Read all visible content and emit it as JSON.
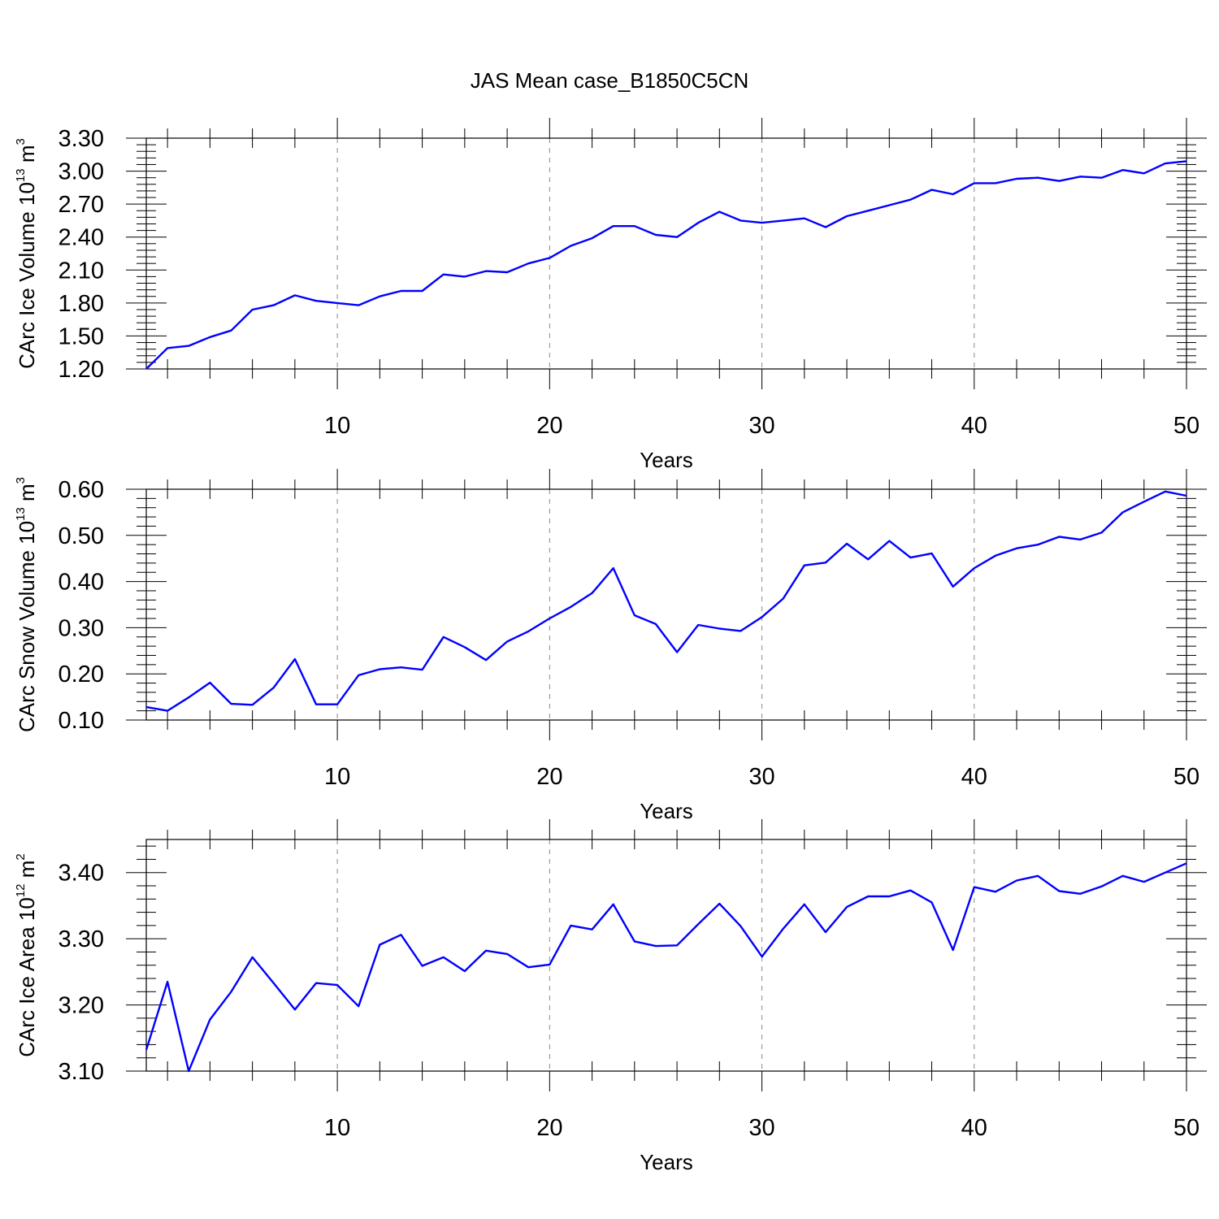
{
  "figure": {
    "title": "JAS Mean case_B1850C5CN",
    "line_color": "#0000ff"
  },
  "chart_data": [
    {
      "type": "line",
      "ylabel_parts": [
        "CArc Ice Volume 10",
        "13",
        " m",
        "3"
      ],
      "xlabel": "Years",
      "xlim": [
        1,
        50
      ],
      "ylim": [
        1.2,
        3.3
      ],
      "xticks": [
        "10",
        "20",
        "30",
        "40",
        "50"
      ],
      "yticks": [
        "1.20",
        "1.50",
        "1.80",
        "2.10",
        "2.40",
        "2.70",
        "3.00",
        "3.30"
      ],
      "grid": "vertical-dashed",
      "series": [
        {
          "x": [
            1,
            2,
            3,
            4,
            5,
            6,
            7,
            8,
            9,
            10,
            11,
            12,
            13,
            14,
            15,
            16,
            17,
            18,
            19,
            20,
            21,
            22,
            23,
            24,
            25,
            26,
            27,
            28,
            29,
            30,
            31,
            32,
            33,
            34,
            35,
            36,
            37,
            38,
            39,
            40,
            41,
            42,
            43,
            44,
            45,
            46,
            47,
            48,
            49,
            50
          ],
          "values": [
            1.2,
            1.39,
            1.41,
            1.49,
            1.55,
            1.74,
            1.78,
            1.87,
            1.82,
            1.8,
            1.78,
            1.86,
            1.91,
            1.91,
            2.06,
            2.04,
            2.09,
            2.08,
            2.16,
            2.21,
            2.32,
            2.39,
            2.5,
            2.5,
            2.42,
            2.4,
            2.53,
            2.63,
            2.55,
            2.53,
            2.55,
            2.57,
            2.49,
            2.59,
            2.64,
            2.69,
            2.74,
            2.83,
            2.79,
            2.89,
            2.89,
            2.93,
            2.94,
            2.91,
            2.95,
            2.94,
            3.01,
            2.98,
            3.07,
            3.09
          ]
        }
      ]
    },
    {
      "type": "line",
      "ylabel_parts": [
        "CArc Snow Volume 10",
        "13",
        " m",
        "3"
      ],
      "xlabel": "Years",
      "xlim": [
        1,
        50
      ],
      "ylim": [
        0.1,
        0.6
      ],
      "xticks": [
        "10",
        "20",
        "30",
        "40",
        "50"
      ],
      "yticks": [
        "0.10",
        "0.20",
        "0.30",
        "0.40",
        "0.50",
        "0.60"
      ],
      "grid": "vertical-dashed",
      "series": [
        {
          "x": [
            1,
            2,
            3,
            4,
            5,
            6,
            7,
            8,
            9,
            10,
            11,
            12,
            13,
            14,
            15,
            16,
            17,
            18,
            19,
            20,
            21,
            22,
            23,
            24,
            25,
            26,
            27,
            28,
            29,
            30,
            31,
            32,
            33,
            34,
            35,
            36,
            37,
            38,
            39,
            40,
            41,
            42,
            43,
            44,
            45,
            46,
            47,
            48,
            49,
            50
          ],
          "values": [
            0.128,
            0.12,
            0.149,
            0.181,
            0.135,
            0.133,
            0.17,
            0.232,
            0.134,
            0.134,
            0.197,
            0.21,
            0.214,
            0.209,
            0.28,
            0.258,
            0.23,
            0.27,
            0.292,
            0.32,
            0.345,
            0.375,
            0.429,
            0.327,
            0.308,
            0.247,
            0.306,
            0.298,
            0.293,
            0.323,
            0.363,
            0.435,
            0.441,
            0.482,
            0.448,
            0.488,
            0.452,
            0.461,
            0.389,
            0.429,
            0.456,
            0.472,
            0.48,
            0.497,
            0.491,
            0.506,
            0.55,
            0.573,
            0.595,
            0.586
          ]
        }
      ]
    },
    {
      "type": "line",
      "ylabel_parts": [
        "CArc Ice Area 10",
        "12",
        " m",
        "2"
      ],
      "xlabel": "Years",
      "xlim": [
        1,
        50
      ],
      "ylim": [
        3.1,
        3.45
      ],
      "xticks": [
        "10",
        "20",
        "30",
        "40",
        "50"
      ],
      "yticks": [
        "3.10",
        "3.20",
        "3.30",
        "3.40"
      ],
      "grid": "vertical-dashed",
      "series": [
        {
          "x": [
            1,
            2,
            3,
            4,
            5,
            6,
            7,
            8,
            9,
            10,
            11,
            12,
            13,
            14,
            15,
            16,
            17,
            18,
            19,
            20,
            21,
            22,
            23,
            24,
            25,
            26,
            27,
            28,
            29,
            30,
            31,
            32,
            33,
            34,
            35,
            36,
            37,
            38,
            39,
            40,
            41,
            42,
            43,
            44,
            45,
            46,
            47,
            48,
            49,
            50
          ],
          "values": [
            3.132,
            3.235,
            3.1,
            3.178,
            3.22,
            3.272,
            3.233,
            3.193,
            3.233,
            3.23,
            3.198,
            3.291,
            3.306,
            3.259,
            3.272,
            3.251,
            3.282,
            3.277,
            3.257,
            3.261,
            3.32,
            3.314,
            3.352,
            3.296,
            3.289,
            3.29,
            3.322,
            3.353,
            3.319,
            3.273,
            3.315,
            3.352,
            3.31,
            3.348,
            3.364,
            3.364,
            3.373,
            3.355,
            3.283,
            3.378,
            3.371,
            3.388,
            3.395,
            3.372,
            3.368,
            3.379,
            3.395,
            3.386,
            3.4,
            3.414
          ]
        }
      ]
    }
  ]
}
